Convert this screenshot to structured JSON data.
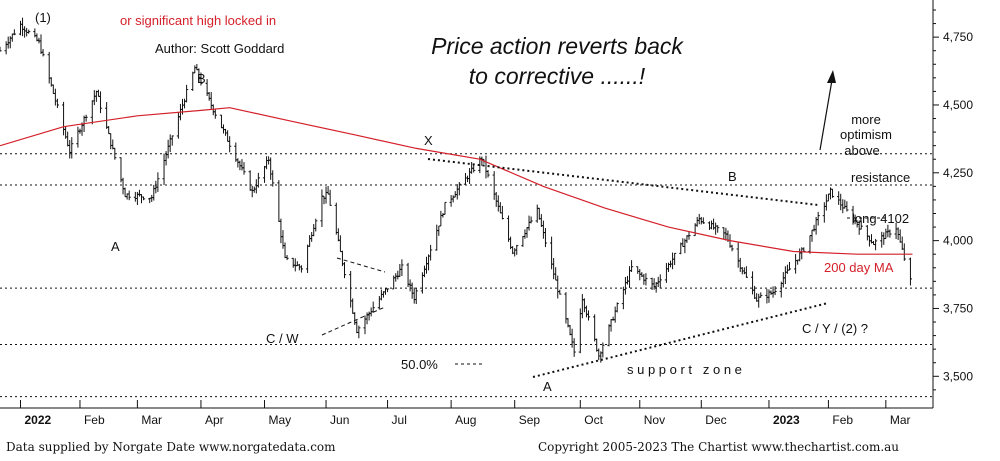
{
  "chart_data": {
    "type": "ohlc",
    "title": "Price action reverts back to corrective ......!",
    "y_range": [
      3420,
      4850
    ],
    "y_ticks": [
      3500,
      3750,
      4000,
      4250,
      4500,
      4750
    ],
    "y_tick_labels": [
      "3,500",
      "3,750",
      "4,000",
      "4,250",
      "4,500",
      "4,750"
    ],
    "x_range": [
      "2021-12-24",
      "2023-03-24"
    ],
    "x_labels": [
      {
        "date": "2022-01-03",
        "label": "2022",
        "bold": true
      },
      {
        "date": "2022-02-01",
        "label": "Feb"
      },
      {
        "date": "2022-03-01",
        "label": "Mar"
      },
      {
        "date": "2022-04-01",
        "label": "Apr"
      },
      {
        "date": "2022-05-02",
        "label": "May"
      },
      {
        "date": "2022-06-01",
        "label": "Jun"
      },
      {
        "date": "2022-07-01",
        "label": "Jul"
      },
      {
        "date": "2022-08-01",
        "label": "Aug"
      },
      {
        "date": "2022-09-01",
        "label": "Sep"
      },
      {
        "date": "2022-10-03",
        "label": "Oct"
      },
      {
        "date": "2022-11-01",
        "label": "Nov"
      },
      {
        "date": "2022-12-01",
        "label": "Dec"
      },
      {
        "date": "2023-01-03",
        "label": "2023",
        "bold": true
      },
      {
        "date": "2023-02-01",
        "label": "Feb"
      },
      {
        "date": "2023-03-01",
        "label": "Mar"
      }
    ],
    "price_path": [
      [
        "2021-12-24",
        4700
      ],
      [
        "2022-01-03",
        4796
      ],
      [
        "2022-01-12",
        4730
      ],
      [
        "2022-01-27",
        4330
      ],
      [
        "2022-02-09",
        4550
      ],
      [
        "2022-02-23",
        4170
      ],
      [
        "2022-03-08",
        4160
      ],
      [
        "2022-03-29",
        4637
      ],
      [
        "2022-04-06",
        4500
      ],
      [
        "2022-04-26",
        4180
      ],
      [
        "2022-05-04",
        4300
      ],
      [
        "2022-05-12",
        3930
      ],
      [
        "2022-05-20",
        3900
      ],
      [
        "2022-05-30",
        4160
      ],
      [
        "2022-06-02",
        4170
      ],
      [
        "2022-06-16",
        3670
      ],
      [
        "2022-07-08",
        3900
      ],
      [
        "2022-07-14",
        3790
      ],
      [
        "2022-07-29",
        4130
      ],
      [
        "2022-08-16",
        4305
      ],
      [
        "2022-08-31",
        3960
      ],
      [
        "2022-09-12",
        4110
      ],
      [
        "2022-09-30",
        3590
      ],
      [
        "2022-10-04",
        3790
      ],
      [
        "2022-10-12",
        3577
      ],
      [
        "2022-10-28",
        3900
      ],
      [
        "2022-11-08",
        3830
      ],
      [
        "2022-11-30",
        4080
      ],
      [
        "2022-12-13",
        4020
      ],
      [
        "2022-12-28",
        3783
      ],
      [
        "2023-01-05",
        3810
      ],
      [
        "2023-01-20",
        3970
      ],
      [
        "2023-02-02",
        4180
      ],
      [
        "2023-02-23",
        3990
      ],
      [
        "2023-03-06",
        4048
      ],
      [
        "2023-03-13",
        3850
      ]
    ],
    "moving_average": {
      "name": "200 day MA",
      "color": "#d4202a",
      "points": [
        [
          "2021-12-24",
          4350
        ],
        [
          "2022-01-24",
          4420
        ],
        [
          "2022-03-01",
          4460
        ],
        [
          "2022-04-01",
          4480
        ],
        [
          "2022-04-15",
          4490
        ],
        [
          "2022-05-15",
          4440
        ],
        [
          "2022-06-15",
          4390
        ],
        [
          "2022-07-15",
          4340
        ],
        [
          "2022-08-15",
          4300
        ],
        [
          "2022-09-15",
          4200
        ],
        [
          "2022-10-15",
          4120
        ],
        [
          "2022-11-15",
          4050
        ],
        [
          "2022-12-15",
          4000
        ],
        [
          "2023-01-15",
          3960
        ],
        [
          "2023-02-15",
          3950
        ],
        [
          "2023-03-14",
          3950
        ]
      ]
    },
    "horizontal_levels": [
      4320,
      4205,
      3825,
      3617,
      3425
    ],
    "line_labels": {
      "resistance": "resistance",
      "long_4102": "long 4102",
      "ma_label": "200 day MA",
      "support_zone": "s u p p o r t   z o n e",
      "fib": "50.0%"
    },
    "wave_labels": {
      "w1": "(1)",
      "a1": "A",
      "b1": "B",
      "x": "X",
      "cw": "C / W",
      "a2": "A",
      "b2": "B",
      "cy": "C / Y / (2) ?"
    },
    "notes": {
      "locked": "or significant high locked in",
      "author": "Author: Scott Goddard",
      "optimism": [
        "more",
        "optimism",
        "above"
      ]
    },
    "footer": {
      "left": "Data supplied by Norgate Date www.norgatedata.com",
      "right": "Copyright 2005-2023 The Chartist www.thechartist.com.au"
    }
  }
}
